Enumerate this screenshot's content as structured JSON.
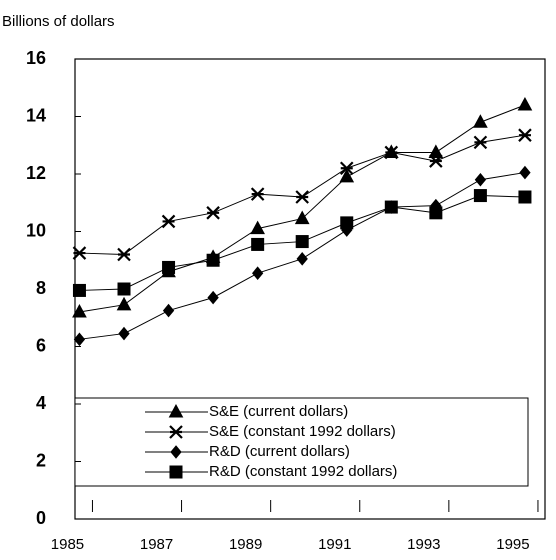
{
  "chart_data": {
    "type": "line",
    "y_label": "Billions of dollars",
    "x": [
      1985,
      1986,
      1987,
      1988,
      1989,
      1990,
      1991,
      1992,
      1993,
      1994,
      1995
    ],
    "xlim": [
      1984.9,
      1995.45
    ],
    "xticks": [
      1985,
      1987,
      1989,
      1991,
      1993,
      1995
    ],
    "ylim": [
      0,
      16
    ],
    "yticks": [
      0,
      2,
      4,
      6,
      8,
      10,
      12,
      14,
      16
    ],
    "series": [
      {
        "name": "S&E (current dollars)",
        "marker": "triangle",
        "color": "#000000",
        "values": [
          7.2,
          7.45,
          8.6,
          9.1,
          10.1,
          10.45,
          11.9,
          12.75,
          12.75,
          13.8,
          14.4
        ]
      },
      {
        "name": "S&E (constant 1992 dollars)",
        "marker": "star",
        "color": "#000000",
        "values": [
          9.25,
          9.2,
          10.35,
          10.65,
          11.3,
          11.2,
          12.2,
          12.75,
          12.45,
          13.1,
          13.35
        ]
      },
      {
        "name": "R&D (current dollars)",
        "marker": "diamond",
        "color": "#000000",
        "values": [
          6.25,
          6.45,
          7.25,
          7.7,
          8.55,
          9.05,
          10.05,
          10.85,
          10.9,
          11.8,
          12.05
        ]
      },
      {
        "name": "R&D (constant 1992 dollars)",
        "marker": "square",
        "color": "#000000",
        "values": [
          7.95,
          8.0,
          8.75,
          9.0,
          9.55,
          9.65,
          10.3,
          10.85,
          10.65,
          11.25,
          11.2
        ]
      }
    ]
  }
}
